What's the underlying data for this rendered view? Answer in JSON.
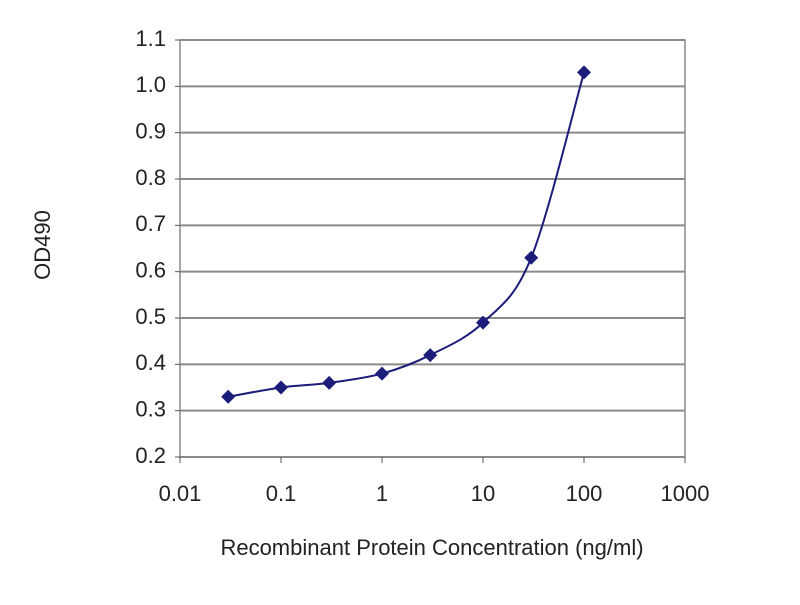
{
  "chart_data": {
    "type": "line",
    "x_label": "Recombinant Protein Concentration (ng/ml)",
    "y_label": "OD490",
    "x": [
      0.03,
      0.1,
      0.3,
      1,
      3,
      10,
      30,
      100
    ],
    "values": [
      0.33,
      0.35,
      0.36,
      0.38,
      0.42,
      0.49,
      0.63,
      1.03
    ],
    "color": "#1c1c7a",
    "x_scale": "log",
    "xlim": [
      0.01,
      1000
    ],
    "xticks": [
      0.01,
      0.1,
      1,
      10,
      100,
      1000
    ],
    "ylim": [
      0.2,
      1.1
    ],
    "yticks": [
      0.2,
      0.3,
      0.4,
      0.5,
      0.6,
      0.7,
      0.8,
      0.9,
      {
        "value": 1,
        "label": "1.0"
      },
      1.1
    ],
    "grid": true
  }
}
